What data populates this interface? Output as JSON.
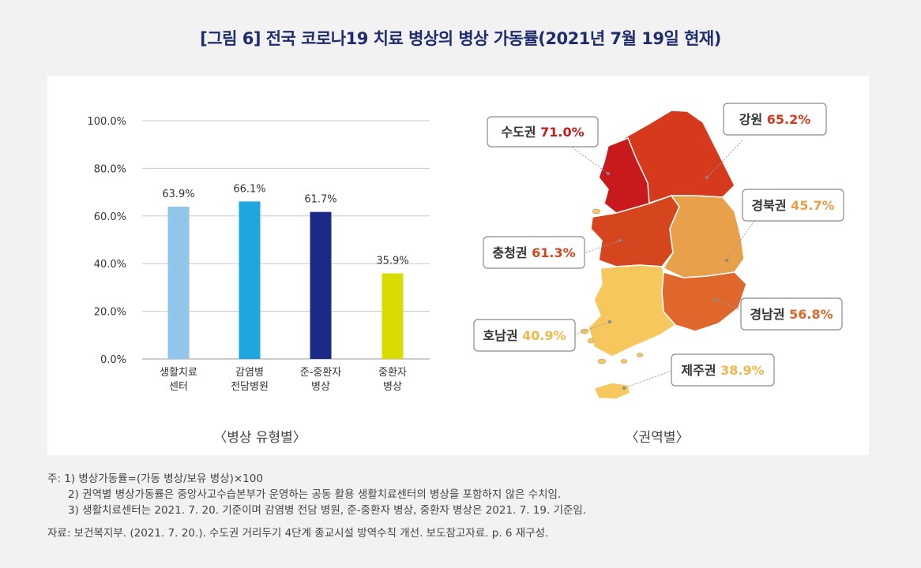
{
  "title": "[그림 6] 전국 코로나19 치료 병상의 병상 가동률(2021년 7월 19일 현재)",
  "chart_data": [
    {
      "type": "bar",
      "title": "〈병상 유형별〉",
      "categories": [
        [
          "생활치료",
          "센터"
        ],
        [
          "감염병",
          "전담병원"
        ],
        [
          "준-중환자",
          "병상"
        ],
        [
          "중환자",
          "병상"
        ]
      ],
      "values": [
        63.9,
        66.1,
        61.7,
        35.9
      ],
      "value_labels": [
        "63.9%",
        "66.1%",
        "61.7%",
        "35.9%"
      ],
      "colors": [
        "#92c5ea",
        "#1ea6e0",
        "#1a2a86",
        "#d9dc00"
      ],
      "yticks": [
        "100.0%",
        "80.0%",
        "60.0%",
        "40.0%",
        "20.0%",
        "0.0%"
      ],
      "ylim": [
        0,
        100
      ],
      "grid": true
    },
    {
      "type": "map",
      "title": "〈권역별〉",
      "regions": [
        {
          "name": "수도권",
          "value": "71.0%",
          "color": "#c8191c"
        },
        {
          "name": "강원",
          "value": "65.2%",
          "color": "#d63a1c"
        },
        {
          "name": "경북권",
          "value": "45.7%",
          "color": "#e9a04a"
        },
        {
          "name": "충청권",
          "value": "61.3%",
          "color": "#d5461e"
        },
        {
          "name": "경남권",
          "value": "56.8%",
          "color": "#e0672b"
        },
        {
          "name": "호남권",
          "value": "40.9%",
          "color": "#f5c75d"
        },
        {
          "name": "제주권",
          "value": "38.9%",
          "color": "#f5c75d"
        }
      ]
    }
  ],
  "notes": {
    "n1": "주: 1) 병상가동률=(가동 병상/보유 병상)×100",
    "n2": "2) 권역별 병상가동률은 중앙사고수습본부가 운영하는 공동 활용 생활치료센터의 병상을 포함하지 않은 수치임.",
    "n3": "3) 생활치료센터는 2021. 7. 20. 기준이며 감염병 전담 병원, 준-중환자 병상, 중환자 병상은 2021. 7. 19. 기준임.",
    "source": "자료: 보건복지부. (2021. 7. 20.). 수도권 거리두기 4단계 종교시설 방역수칙 개선. 보도참고자료. p. 6 재구성."
  }
}
